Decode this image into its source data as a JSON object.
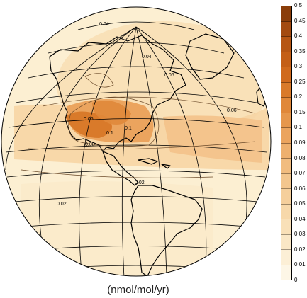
{
  "units_label": "(nmol/mol/yr)",
  "colorbar": {
    "ticks": [
      "0.5",
      "0.45",
      "0.4",
      "0.35",
      "0.3",
      "0.25",
      "0.2",
      "0.15",
      "0.1",
      "0.09",
      "0.08",
      "0.07",
      "0.06",
      "0.05",
      "0.04",
      "0.03",
      "0.02",
      "0.01",
      "0"
    ],
    "colors": [
      "#8a3d0a",
      "#a34a10",
      "#b65614",
      "#c45f17",
      "#d06a1d",
      "#d97a2a",
      "#e0883a",
      "#e6974c",
      "#eba45e",
      "#eeb06e",
      "#f1bc7f",
      "#f3c68e",
      "#f5cf9c",
      "#f7d8aa",
      "#f9e0b8",
      "#fae7c6",
      "#fcefd6",
      "#fdf6e6"
    ]
  },
  "contour_labels": [
    "0.04",
    "0.04",
    "0.06",
    "0.1",
    "0.1",
    "0.06",
    "0.06",
    "0.08",
    "0.02",
    "0.02"
  ],
  "map": {
    "projection": "orthographic",
    "center": "North America / Atlantic",
    "ocean_color": "#fcefd2",
    "land_outline_color": "#000000",
    "grid_color": "#000000"
  }
}
